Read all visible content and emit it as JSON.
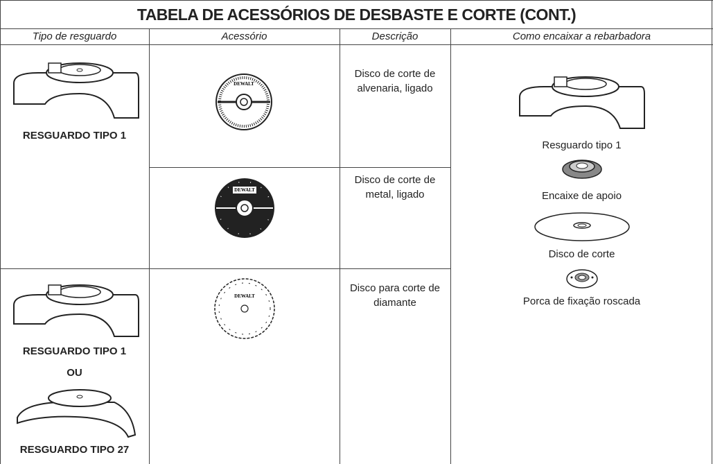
{
  "title": "TABELA DE ACESSÓRIOS DE DESBASTE E CORTE (CONT.)",
  "table": {
    "headers": [
      "Tipo de resguardo",
      "Acessório",
      "Descrição",
      "Como encaixar a rebarbadora"
    ],
    "guards": [
      {
        "labels": [
          "RESGUARDO TIPO 1"
        ]
      },
      {
        "labels": [
          "RESGUARDO TIPO 1",
          "OU",
          "RESGUARDO TIPO 27"
        ]
      }
    ],
    "descriptions": [
      "Disco de corte de alvenaria, ligado",
      "Disco de corte de metal, ligado",
      "Disco para corte de diamante"
    ],
    "brand": "DEWALT",
    "assembly": [
      "Resguardo tipo 1",
      "Encaixe de apoio",
      "Disco de corte",
      "Porca de fixação roscada"
    ]
  }
}
